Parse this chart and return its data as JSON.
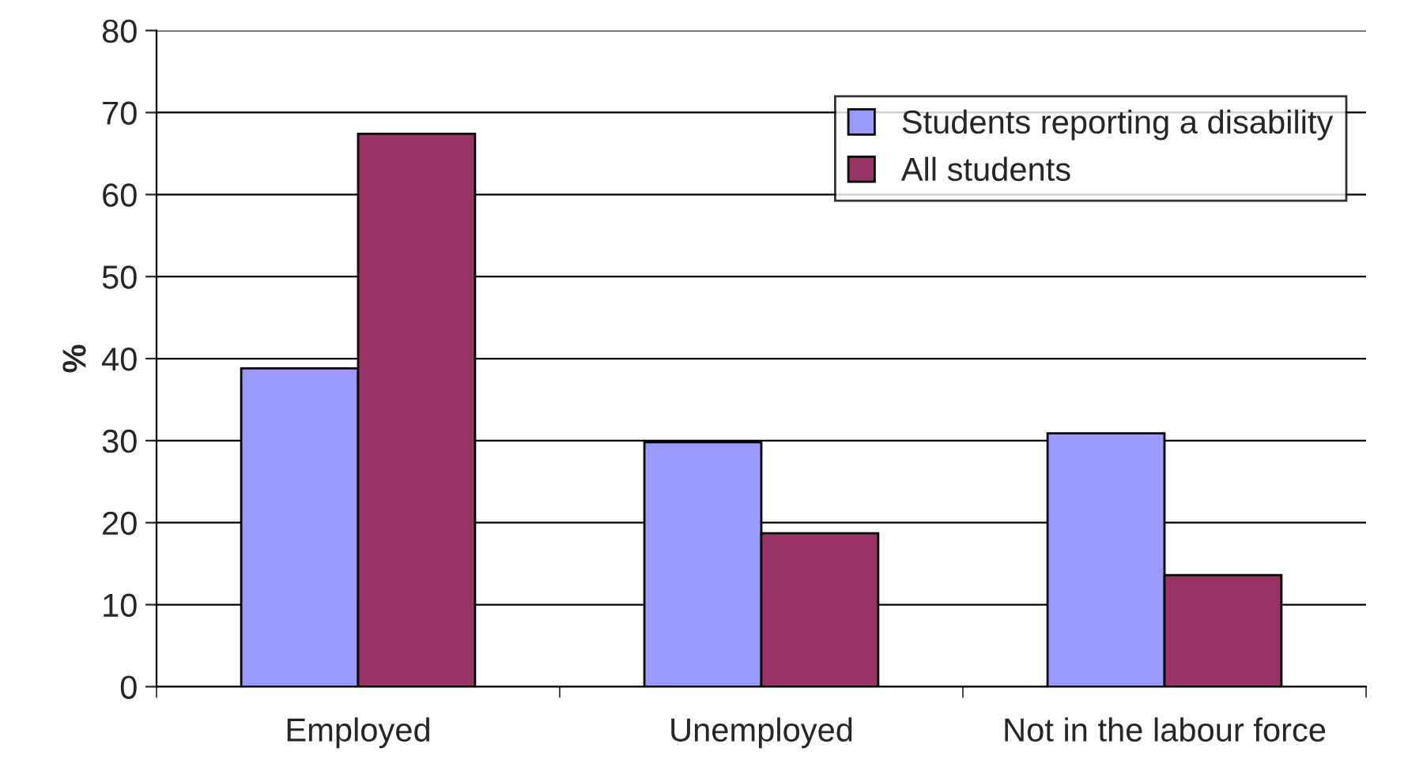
{
  "chart_data": {
    "type": "bar",
    "ylabel": "%",
    "categories": [
      "Employed",
      "Unemployed",
      "Not in the labour force"
    ],
    "series": [
      {
        "name": "Students reporting a disability",
        "color": "#9999ff",
        "values": [
          38.8,
          29.8,
          30.9
        ]
      },
      {
        "name": "All students",
        "color": "#993366",
        "values": [
          67.4,
          18.7,
          13.6
        ]
      }
    ],
    "ylim": [
      0,
      80
    ],
    "yticks": [
      0,
      10,
      20,
      30,
      40,
      50,
      60,
      70,
      80
    ],
    "grid": "y",
    "legend": "top right"
  }
}
